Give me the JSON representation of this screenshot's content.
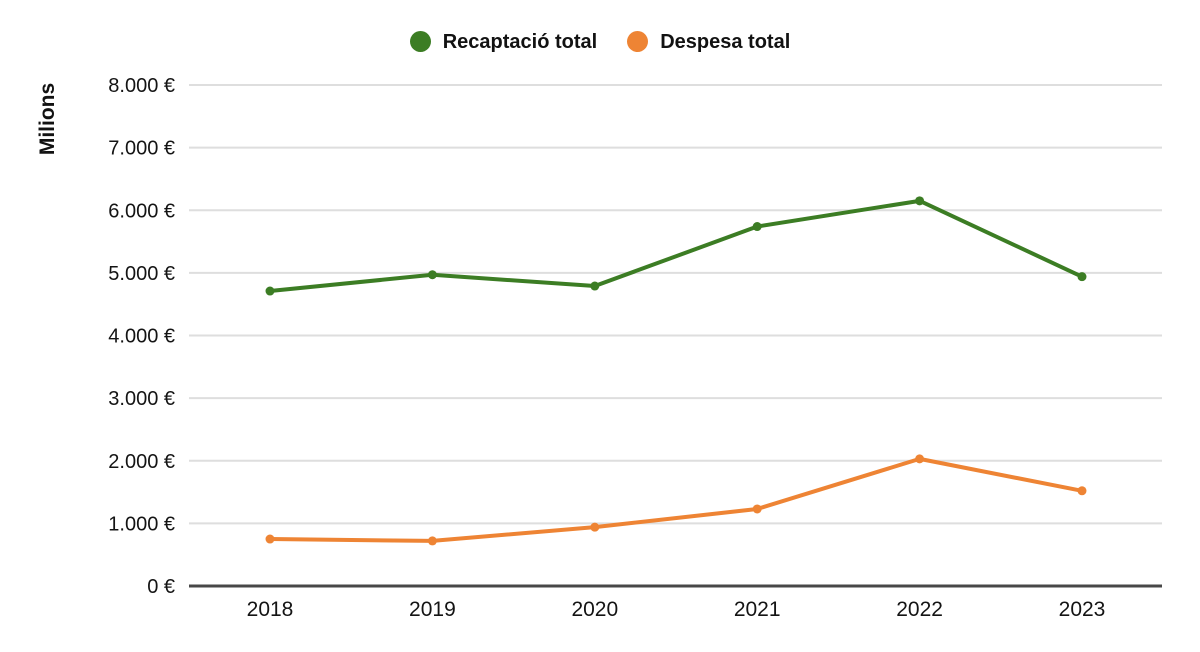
{
  "page": {
    "background": "#ffffff"
  },
  "y_axis_title": "Milions",
  "colors": {
    "gridline": "#dedede",
    "axis_line": "#474747",
    "text": "#141414",
    "series_green": "#3c7d24",
    "series_orange": "#ee8434"
  },
  "chart_data": {
    "type": "line",
    "title": "",
    "xlabel": "",
    "ylabel": "Milions",
    "categories": [
      "2018",
      "2019",
      "2020",
      "2021",
      "2022",
      "2023"
    ],
    "series": [
      {
        "name": "Recaptació total",
        "color": "#3c7d24",
        "values": [
          4710,
          4970,
          4790,
          5740,
          6150,
          4940
        ]
      },
      {
        "name": "Despesa total",
        "color": "#ee8434",
        "values": [
          750,
          720,
          940,
          1230,
          2030,
          1520
        ]
      }
    ],
    "ylim": [
      0,
      8000
    ],
    "ytick_step": 1000,
    "ytick_labels": [
      "0 €",
      "1.000 €",
      "2.000 €",
      "3.000 €",
      "4.000 €",
      "5.000 €",
      "6.000 €",
      "7.000 €",
      "8.000 €"
    ],
    "grid": true,
    "legend_position": "top",
    "marker": "circle",
    "units": "millions of euros"
  }
}
